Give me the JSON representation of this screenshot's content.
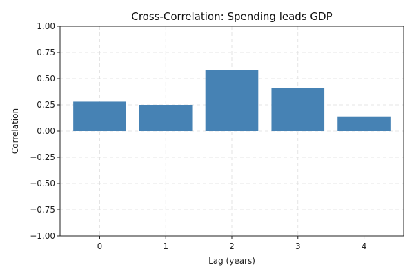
{
  "chart_data": {
    "type": "bar",
    "title": "Cross-Correlation: Spending leads GDP",
    "xlabel": "Lag (years)",
    "ylabel": "Correlation",
    "categories": [
      "0",
      "1",
      "2",
      "3",
      "4"
    ],
    "values": [
      0.28,
      0.25,
      0.58,
      0.41,
      0.14
    ],
    "ylim": [
      -1.0,
      1.0
    ],
    "yticks": [
      "-1.00",
      "-0.75",
      "-0.50",
      "-0.25",
      "0.00",
      "0.25",
      "0.50",
      "0.75",
      "1.00"
    ],
    "grid": true,
    "bar_color": "#4682b4"
  }
}
